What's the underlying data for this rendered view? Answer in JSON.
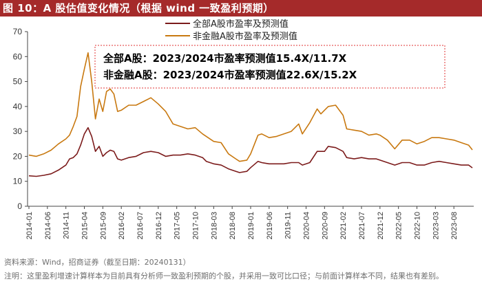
{
  "header": {
    "title": "图 10：A 股估值变化情况（根据 wind 一致盈利预期）"
  },
  "footer": {
    "source": "资料来源：Wind，招商证券（截至日期：20240131）",
    "note": "注明：这里盈利增速计算样本为目前具有分析师一致盈利预期的个股，并采用一致可比口径；与前面计算样本不同，结果也有差别。"
  },
  "colors": {
    "title_bg": "#a52a2a",
    "all_a": "#7b1a1a",
    "non_fin": "#c8780f",
    "annotation_border": "#e03030"
  },
  "chart_data": {
    "type": "line",
    "ylim": [
      0,
      70
    ],
    "yticks": [
      0,
      10,
      20,
      30,
      40,
      50,
      60,
      70
    ],
    "x_tick_labels": [
      "2014-01",
      "2014-06",
      "2014-11",
      "2015-04",
      "2015-09",
      "2016-02",
      "2016-07",
      "2016-12",
      "2017-05",
      "2017-10",
      "2018-03",
      "2018-08",
      "2019-01",
      "2019-06",
      "2019-11",
      "2020-04",
      "2020-09",
      "2021-02",
      "2021-07",
      "2021-12",
      "2022-05",
      "2022-10",
      "2023-03",
      "2023-08"
    ],
    "legend": [
      "全部A股市盈率及预测值",
      "非金融A股市盈率及预测值"
    ],
    "annotation_lines": [
      "全部A股：2023/2024市盈率预测值15.4X/11.7X",
      "非金融A股：2023/2024市盈率预测值22.6X/15.2X"
    ],
    "series": [
      {
        "name": "全部A股市盈率及预测值",
        "points": [
          [
            "2014-01",
            12.2
          ],
          [
            "2014-03",
            12.0
          ],
          [
            "2014-05",
            12.4
          ],
          [
            "2014-07",
            13.0
          ],
          [
            "2014-09",
            14.5
          ],
          [
            "2014-11",
            16.5
          ],
          [
            "2014-12",
            19.0
          ],
          [
            "2015-01",
            19.5
          ],
          [
            "2015-02",
            21.0
          ],
          [
            "2015-03",
            24.5
          ],
          [
            "2015-04",
            29.0
          ],
          [
            "2015-05",
            31.5
          ],
          [
            "2015-06",
            28.0
          ],
          [
            "2015-07",
            22.0
          ],
          [
            "2015-08",
            24.0
          ],
          [
            "2015-09",
            20.0
          ],
          [
            "2015-10",
            21.5
          ],
          [
            "2015-11",
            22.5
          ],
          [
            "2015-12",
            22.0
          ],
          [
            "2016-01",
            19.0
          ],
          [
            "2016-02",
            18.5
          ],
          [
            "2016-04",
            19.5
          ],
          [
            "2016-06",
            20.0
          ],
          [
            "2016-08",
            21.5
          ],
          [
            "2016-10",
            22.0
          ],
          [
            "2016-12",
            21.5
          ],
          [
            "2017-02",
            20.0
          ],
          [
            "2017-04",
            20.5
          ],
          [
            "2017-06",
            20.5
          ],
          [
            "2017-08",
            21.0
          ],
          [
            "2017-10",
            20.5
          ],
          [
            "2017-12",
            19.5
          ],
          [
            "2018-01",
            18.0
          ],
          [
            "2018-03",
            17.0
          ],
          [
            "2018-05",
            16.5
          ],
          [
            "2018-07",
            15.0
          ],
          [
            "2018-09",
            14.0
          ],
          [
            "2018-10",
            13.5
          ],
          [
            "2018-12",
            14.0
          ],
          [
            "2019-01",
            15.5
          ],
          [
            "2019-03",
            18.0
          ],
          [
            "2019-04",
            17.5
          ],
          [
            "2019-06",
            17.0
          ],
          [
            "2019-08",
            17.0
          ],
          [
            "2019-10",
            17.0
          ],
          [
            "2019-12",
            17.5
          ],
          [
            "2020-02",
            17.5
          ],
          [
            "2020-03",
            16.5
          ],
          [
            "2020-05",
            17.5
          ],
          [
            "2020-07",
            22.0
          ],
          [
            "2020-09",
            22.0
          ],
          [
            "2020-10",
            24.0
          ],
          [
            "2020-12",
            23.5
          ],
          [
            "2021-02",
            22.0
          ],
          [
            "2021-03",
            19.5
          ],
          [
            "2021-05",
            19.0
          ],
          [
            "2021-07",
            19.5
          ],
          [
            "2021-09",
            19.0
          ],
          [
            "2021-11",
            19.0
          ],
          [
            "2021-12",
            18.5
          ],
          [
            "2022-02",
            17.5
          ],
          [
            "2022-04",
            16.5
          ],
          [
            "2022-06",
            17.5
          ],
          [
            "2022-08",
            17.5
          ],
          [
            "2022-10",
            16.5
          ],
          [
            "2022-12",
            16.5
          ],
          [
            "2023-02",
            17.5
          ],
          [
            "2023-04",
            18.0
          ],
          [
            "2023-06",
            17.5
          ],
          [
            "2023-08",
            17.0
          ],
          [
            "2023-10",
            16.5
          ],
          [
            "2023-12",
            16.5
          ],
          [
            "2024-01",
            15.4
          ]
        ]
      },
      {
        "name": "非金融A股市盈率及预测值",
        "points": [
          [
            "2014-01",
            20.5
          ],
          [
            "2014-03",
            20.0
          ],
          [
            "2014-05",
            21.0
          ],
          [
            "2014-07",
            22.5
          ],
          [
            "2014-09",
            25.0
          ],
          [
            "2014-11",
            27.0
          ],
          [
            "2014-12",
            28.5
          ],
          [
            "2015-01",
            32.0
          ],
          [
            "2015-02",
            36.0
          ],
          [
            "2015-03",
            48.0
          ],
          [
            "2015-04",
            55.0
          ],
          [
            "2015-05",
            61.5
          ],
          [
            "2015-06",
            50.0
          ],
          [
            "2015-07",
            35.0
          ],
          [
            "2015-08",
            43.0
          ],
          [
            "2015-09",
            38.0
          ],
          [
            "2015-10",
            46.0
          ],
          [
            "2015-11",
            47.0
          ],
          [
            "2015-12",
            45.0
          ],
          [
            "2016-01",
            38.0
          ],
          [
            "2016-02",
            38.5
          ],
          [
            "2016-04",
            40.5
          ],
          [
            "2016-06",
            40.5
          ],
          [
            "2016-08",
            42.0
          ],
          [
            "2016-10",
            43.5
          ],
          [
            "2016-12",
            41.0
          ],
          [
            "2017-02",
            38.0
          ],
          [
            "2017-04",
            33.0
          ],
          [
            "2017-06",
            32.0
          ],
          [
            "2017-08",
            31.0
          ],
          [
            "2017-10",
            31.5
          ],
          [
            "2017-12",
            29.0
          ],
          [
            "2018-01",
            28.0
          ],
          [
            "2018-03",
            26.0
          ],
          [
            "2018-05",
            25.5
          ],
          [
            "2018-07",
            21.0
          ],
          [
            "2018-09",
            19.0
          ],
          [
            "2018-10",
            18.0
          ],
          [
            "2018-12",
            18.5
          ],
          [
            "2019-01",
            21.0
          ],
          [
            "2019-03",
            28.5
          ],
          [
            "2019-04",
            29.0
          ],
          [
            "2019-06",
            27.5
          ],
          [
            "2019-08",
            28.0
          ],
          [
            "2019-10",
            29.0
          ],
          [
            "2019-12",
            30.0
          ],
          [
            "2020-02",
            33.0
          ],
          [
            "2020-03",
            29.0
          ],
          [
            "2020-05",
            33.5
          ],
          [
            "2020-07",
            39.0
          ],
          [
            "2020-08",
            37.0
          ],
          [
            "2020-09",
            38.5
          ],
          [
            "2020-10",
            40.0
          ],
          [
            "2020-12",
            40.5
          ],
          [
            "2021-02",
            36.5
          ],
          [
            "2021-03",
            31.0
          ],
          [
            "2021-05",
            30.5
          ],
          [
            "2021-07",
            30.0
          ],
          [
            "2021-09",
            28.5
          ],
          [
            "2021-11",
            29.0
          ],
          [
            "2021-12",
            28.5
          ],
          [
            "2022-02",
            26.5
          ],
          [
            "2022-04",
            23.0
          ],
          [
            "2022-06",
            26.5
          ],
          [
            "2022-08",
            26.5
          ],
          [
            "2022-10",
            25.0
          ],
          [
            "2022-12",
            26.0
          ],
          [
            "2023-02",
            27.5
          ],
          [
            "2023-04",
            27.5
          ],
          [
            "2023-06",
            27.0
          ],
          [
            "2023-08",
            26.5
          ],
          [
            "2023-10",
            25.5
          ],
          [
            "2023-12",
            24.5
          ],
          [
            "2024-01",
            22.6
          ]
        ]
      }
    ]
  }
}
